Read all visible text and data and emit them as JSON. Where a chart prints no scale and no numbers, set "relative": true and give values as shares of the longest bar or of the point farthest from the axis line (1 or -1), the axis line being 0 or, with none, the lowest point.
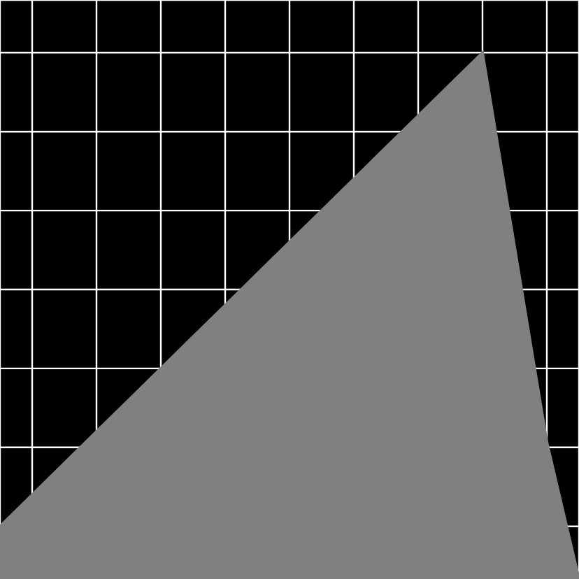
{
  "chart_data": {
    "type": "area",
    "relative": true,
    "grid": true,
    "categories": [
      null,
      null,
      null,
      null,
      null,
      null,
      null,
      null,
      null,
      null,
      null,
      null,
      null,
      null,
      null,
      null,
      null,
      null,
      null
    ],
    "series": [
      {
        "color": "#808080",
        "values": [
          0.1,
          0.16,
          0.22,
          0.28,
          0.34,
          0.4,
          0.46,
          0.52,
          0.58,
          0.64,
          0.7,
          0.76,
          0.82,
          0.88,
          0.94,
          1,
          0.63,
          0.26,
          0
        ]
      }
    ]
  }
}
